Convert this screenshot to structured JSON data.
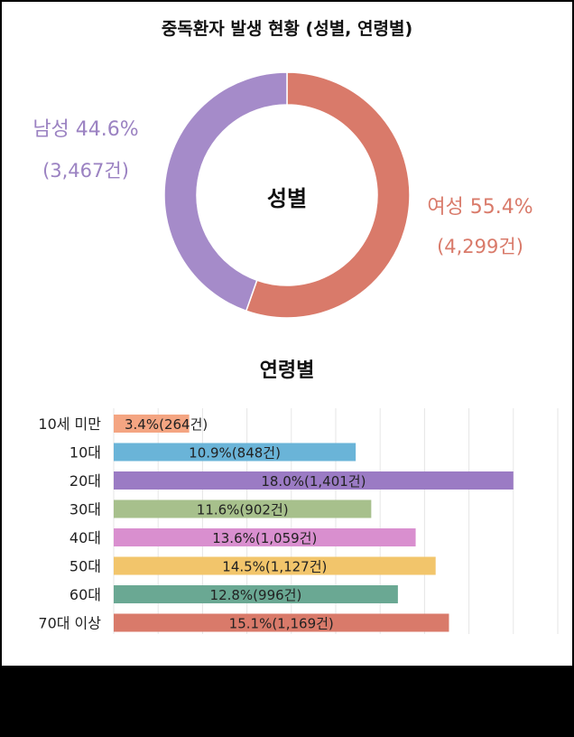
{
  "title": "중독환자 발생 현황 (성별, 연령별)",
  "colors": {
    "male": "#a58bc9",
    "female": "#d97a6a",
    "male_text": "#9b82c2",
    "female_text": "#d97a6a"
  },
  "chart_data": [
    {
      "type": "pie",
      "subtype": "donut",
      "center_label": "성별",
      "slices": [
        {
          "name": "남성",
          "percent_label": "44.6%",
          "value": 44.6,
          "count_label": "(3,467건)",
          "count": 3467,
          "color": "#a58bc9"
        },
        {
          "name": "여성",
          "percent_label": "55.4%",
          "value": 55.4,
          "count_label": "(4,299건)",
          "count": 4299,
          "color": "#d97a6a"
        }
      ]
    },
    {
      "type": "bar",
      "orientation": "horizontal",
      "title": "연령별",
      "categories": [
        "10세 미만",
        "10대",
        "20대",
        "30대",
        "40대",
        "50대",
        "60대",
        "70대 이상"
      ],
      "values": [
        3.4,
        10.9,
        18.0,
        11.6,
        13.6,
        14.5,
        12.8,
        15.1
      ],
      "labels": [
        "3.4%(264건)",
        "10.9%(848건)",
        "18.0%(1,401건)",
        "11.6%(902건)",
        "13.6%(1,059건)",
        "14.5%(1,127건)",
        "12.8%(996건)",
        "15.1%(1,169건)"
      ],
      "colors": [
        "#f4a582",
        "#6ab4d8",
        "#9b7bc4",
        "#a7c08c",
        "#d98fcf",
        "#f2c56b",
        "#6aa893",
        "#d97a6a"
      ],
      "xlim": [
        0,
        20
      ],
      "grid": true
    }
  ]
}
